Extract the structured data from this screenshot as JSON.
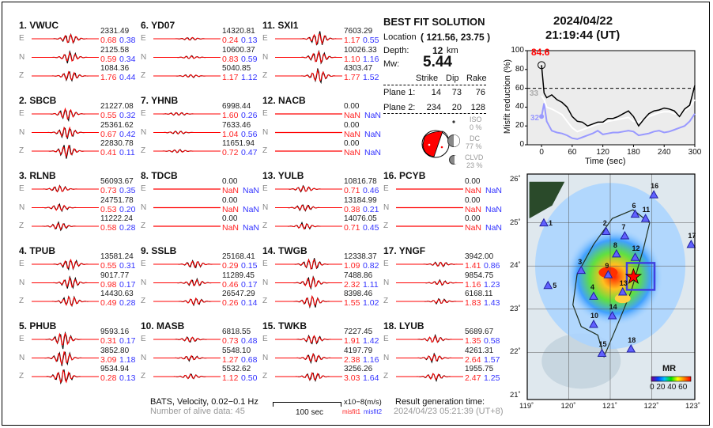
{
  "stations": [
    {
      "label": "1.  VWUC",
      "comps": [
        {
          "c": "E",
          "amp": "2331.49",
          "m1": "0.68",
          "m2": "0.38"
        },
        {
          "c": "N",
          "amp": "2125.58",
          "m1": "0.59",
          "m2": "0.34"
        },
        {
          "c": "Z",
          "amp": "1084.36",
          "m1": "1.76",
          "m2": "0.44"
        }
      ]
    },
    {
      "label": "2.  SBCB",
      "comps": [
        {
          "c": "E",
          "amp": "21227.08",
          "m1": "0.55",
          "m2": "0.32"
        },
        {
          "c": "N",
          "amp": "25361.62",
          "m1": "0.67",
          "m2": "0.42"
        },
        {
          "c": "Z",
          "amp": "22830.78",
          "m1": "0.41",
          "m2": "0.11"
        }
      ]
    },
    {
      "label": "3.  RLNB",
      "comps": [
        {
          "c": "E",
          "amp": "56093.67",
          "m1": "0.73",
          "m2": "0.35"
        },
        {
          "c": "N",
          "amp": "24751.78",
          "m1": "0.53",
          "m2": "0.20"
        },
        {
          "c": "Z",
          "amp": "11222.24",
          "m1": "0.58",
          "m2": "0.28"
        }
      ]
    },
    {
      "label": "4.  TPUB",
      "comps": [
        {
          "c": "E",
          "amp": "13581.24",
          "m1": "0.55",
          "m2": "0.31"
        },
        {
          "c": "N",
          "amp": "9017.77",
          "m1": "0.98",
          "m2": "0.17"
        },
        {
          "c": "Z",
          "amp": "14430.63",
          "m1": "0.49",
          "m2": "0.28"
        }
      ]
    },
    {
      "label": "5.  PHUB",
      "comps": [
        {
          "c": "E",
          "amp": "9593.16",
          "m1": "0.31",
          "m2": "0.17"
        },
        {
          "c": "N",
          "amp": "3852.80",
          "m1": "3.09",
          "m2": "1.18"
        },
        {
          "c": "Z",
          "amp": "9534.94",
          "m1": "0.28",
          "m2": "0.13"
        }
      ]
    },
    {
      "label": "6.  YD07",
      "comps": [
        {
          "c": "E",
          "amp": "14320.81",
          "m1": "0.24",
          "m2": "0.13"
        },
        {
          "c": "N",
          "amp": "10600.37",
          "m1": "0.83",
          "m2": "0.59"
        },
        {
          "c": "Z",
          "amp": "5040.85",
          "m1": "1.17",
          "m2": "1.12"
        }
      ]
    },
    {
      "label": "7.  YHNB",
      "comps": [
        {
          "c": "E",
          "amp": "6998.44",
          "m1": "1.60",
          "m2": "0.26"
        },
        {
          "c": "N",
          "amp": "7633.46",
          "m1": "1.04",
          "m2": "0.56"
        },
        {
          "c": "Z",
          "amp": "11651.94",
          "m1": "0.72",
          "m2": "0.47"
        }
      ]
    },
    {
      "label": "8.  TDCB",
      "comps": [
        {
          "c": "E",
          "amp": "0.00",
          "m1": "NaN",
          "m2": "NaN"
        },
        {
          "c": "N",
          "amp": "0.00",
          "m1": "NaN",
          "m2": "NaN"
        },
        {
          "c": "Z",
          "amp": "0.00",
          "m1": "NaN",
          "m2": "NaN"
        }
      ]
    },
    {
      "label": "9.  SSLB",
      "comps": [
        {
          "c": "E",
          "amp": "25168.41",
          "m1": "0.29",
          "m2": "0.15"
        },
        {
          "c": "N",
          "amp": "11289.45",
          "m1": "0.46",
          "m2": "0.17"
        },
        {
          "c": "Z",
          "amp": "26547.29",
          "m1": "0.26",
          "m2": "0.14"
        }
      ]
    },
    {
      "label": "10. MASB",
      "comps": [
        {
          "c": "E",
          "amp": "6818.55",
          "m1": "0.73",
          "m2": "0.48"
        },
        {
          "c": "N",
          "amp": "5548.10",
          "m1": "1.27",
          "m2": "0.68"
        },
        {
          "c": "Z",
          "amp": "5532.62",
          "m1": "1.12",
          "m2": "0.50"
        }
      ]
    },
    {
      "label": "11. SXI1",
      "comps": [
        {
          "c": "E",
          "amp": "7603.29",
          "m1": "1.17",
          "m2": "0.55"
        },
        {
          "c": "N",
          "amp": "10026.33",
          "m1": "1.10",
          "m2": "1.16"
        },
        {
          "c": "Z",
          "amp": "4303.47",
          "m1": "1.77",
          "m2": "1.52"
        }
      ]
    },
    {
      "label": "12. NACB",
      "comps": [
        {
          "c": "E",
          "amp": "0.00",
          "m1": "NaN",
          "m2": "NaN"
        },
        {
          "c": "N",
          "amp": "0.00",
          "m1": "NaN",
          "m2": "NaN"
        },
        {
          "c": "Z",
          "amp": "0.00",
          "m1": "NaN",
          "m2": "NaN"
        }
      ]
    },
    {
      "label": "13. YULB",
      "comps": [
        {
          "c": "E",
          "amp": "10816.78",
          "m1": "0.71",
          "m2": "0.46"
        },
        {
          "c": "N",
          "amp": "13184.99",
          "m1": "0.38",
          "m2": "0.21"
        },
        {
          "c": "Z",
          "amp": "14076.05",
          "m1": "0.71",
          "m2": "0.45"
        }
      ]
    },
    {
      "label": "14. TWGB",
      "comps": [
        {
          "c": "E",
          "amp": "12338.37",
          "m1": "1.09",
          "m2": "0.82"
        },
        {
          "c": "N",
          "amp": "7488.86",
          "m1": "2.32",
          "m2": "1.11"
        },
        {
          "c": "Z",
          "amp": "8398.46",
          "m1": "1.55",
          "m2": "1.02"
        }
      ]
    },
    {
      "label": "15. TWKB",
      "comps": [
        {
          "c": "E",
          "amp": "7227.45",
          "m1": "1.91",
          "m2": "1.42"
        },
        {
          "c": "N",
          "amp": "4197.79",
          "m1": "2.38",
          "m2": "1.16"
        },
        {
          "c": "Z",
          "amp": "3256.26",
          "m1": "3.03",
          "m2": "1.64"
        }
      ]
    },
    {
      "label": "16. PCYB",
      "comps": [
        {
          "c": "E",
          "amp": "0.00",
          "m1": "NaN",
          "m2": "NaN"
        },
        {
          "c": "N",
          "amp": "0.00",
          "m1": "NaN",
          "m2": "NaN"
        },
        {
          "c": "Z",
          "amp": "0.00",
          "m1": "NaN",
          "m2": "NaN"
        }
      ]
    },
    {
      "label": "17. YNGF",
      "comps": [
        {
          "c": "E",
          "amp": "3942.00",
          "m1": "1.41",
          "m2": "0.86"
        },
        {
          "c": "N",
          "amp": "9854.75",
          "m1": "1.16",
          "m2": "1.23"
        },
        {
          "c": "Z",
          "amp": "6168.11",
          "m1": "1.83",
          "m2": "1.43"
        }
      ]
    },
    {
      "label": "18. LYUB",
      "comps": [
        {
          "c": "E",
          "amp": "5689.67",
          "m1": "1.35",
          "m2": "0.58"
        },
        {
          "c": "N",
          "amp": "4261.31",
          "m1": "2.64",
          "m2": "1.57"
        },
        {
          "c": "Z",
          "amp": "1955.75",
          "m1": "2.47",
          "m2": "1.25"
        }
      ]
    }
  ],
  "solution": {
    "title": "BEST FIT SOLUTION",
    "location_label": "Location",
    "location_value": "( 121.56,  23.75 )",
    "depth_label": "Depth:",
    "depth_value": "12",
    "depth_unit": "km",
    "mw_label": "Mw:",
    "mw_value": "5.44",
    "headers": [
      "Strike",
      "Dip",
      "Rake"
    ],
    "planes": [
      {
        "label": "Plane 1:",
        "strike": "14",
        "dip": "73",
        "rake": "76"
      },
      {
        "label": "Plane 2:",
        "strike": "234",
        "dip": "20",
        "rake": "128"
      }
    ],
    "iso_label": "ISO",
    "iso_value": "0  %",
    "dc_label": "DC",
    "dc_value": "77 %",
    "clvd_label": "CLVD",
    "clvd_value": "23 %"
  },
  "header": {
    "date": "2024/04/22",
    "time": "21:19:44  (UT)"
  },
  "footer": {
    "processing": "BATS, Velocity, 0.02−0.1 Hz",
    "alive": "Number of alive data: 45",
    "scale_label": "100 sec",
    "units": "x10−8(m/s)",
    "misfit1": "misfit1",
    "misfit2": "misfit2",
    "gen_label": "Result generation time:",
    "gen_time": "2024/04/23 05:21:39 (UT+8)"
  },
  "colors": {
    "observed": "#000000",
    "synthetic": "#ff0000",
    "misfit1": "#ff2222",
    "misfit2": "#3333ff"
  },
  "chart_data": {
    "type": "line",
    "xlabel": "Time (sec)",
    "ylabel": "Misfit reduction (%)",
    "xlim": [
      -28,
      300
    ],
    "ylim": [
      0,
      100
    ],
    "xticks": [
      0,
      60,
      120,
      180,
      240,
      300
    ],
    "yticks": [
      0,
      20,
      40,
      60,
      80,
      100
    ],
    "threshold": 60,
    "peak_label": "84.6",
    "white_label": "33",
    "blue_label": "32",
    "x": [
      0,
      5,
      10,
      20,
      30,
      40,
      50,
      60,
      70,
      80,
      90,
      100,
      110,
      120,
      130,
      140,
      150,
      160,
      170,
      180,
      190,
      200,
      210,
      220,
      230,
      240,
      250,
      260,
      270,
      280,
      290,
      300
    ],
    "series": [
      {
        "name": "best",
        "color": "#000000",
        "values": [
          84.6,
          55,
          50,
          53,
          48,
          45,
          40,
          30,
          25,
          24,
          20,
          22,
          24,
          24,
          28,
          28,
          30,
          33,
          36,
          30,
          20,
          27,
          33,
          36,
          37,
          39,
          38,
          36,
          30,
          38,
          42,
          63
        ]
      },
      {
        "name": "white",
        "color": "#ffffff",
        "values": [
          52,
          48,
          40,
          38,
          35,
          32,
          25,
          18,
          14,
          16,
          18,
          20,
          22,
          23,
          25,
          26,
          27,
          28,
          29,
          25,
          24,
          27,
          30,
          32,
          34,
          35,
          35,
          33,
          32,
          36,
          40,
          48
        ]
      },
      {
        "name": "blue",
        "color": "#9999ff",
        "values": [
          30,
          44,
          25,
          15,
          13,
          12,
          10,
          7,
          6,
          8,
          10,
          12,
          15,
          11,
          12,
          13,
          13,
          14,
          15,
          14,
          10,
          11,
          12,
          14,
          15,
          13,
          14,
          16,
          18,
          20,
          25,
          33
        ]
      }
    ]
  },
  "map": {
    "lon_ticks": [
      "119˚",
      "120˚",
      "121˚",
      "122˚",
      "123˚"
    ],
    "lat_ticks": [
      "26˚",
      "25˚",
      "24˚",
      "23˚",
      "22˚",
      "21˚"
    ],
    "colorbar_title": "MR",
    "colorbar_ticks": "0 20 40 60",
    "epicenter": {
      "lon": 121.56,
      "lat": 23.75
    },
    "stations": [
      {
        "n": "1",
        "lon": 119.4,
        "lat": 25.0
      },
      {
        "n": "2",
        "lon": 120.9,
        "lat": 24.8
      },
      {
        "n": "3",
        "lon": 120.3,
        "lat": 23.9
      },
      {
        "n": "4",
        "lon": 120.6,
        "lat": 23.3
      },
      {
        "n": "5",
        "lon": 119.5,
        "lat": 23.55
      },
      {
        "n": "6",
        "lon": 121.6,
        "lat": 25.2
      },
      {
        "n": "7",
        "lon": 121.35,
        "lat": 24.7
      },
      {
        "n": "8",
        "lon": 121.15,
        "lat": 24.28
      },
      {
        "n": "9",
        "lon": 120.95,
        "lat": 23.8
      },
      {
        "n": "10",
        "lon": 120.6,
        "lat": 22.65
      },
      {
        "n": "11",
        "lon": 121.85,
        "lat": 25.1
      },
      {
        "n": "12",
        "lon": 121.6,
        "lat": 24.2
      },
      {
        "n": "13",
        "lon": 121.3,
        "lat": 23.4
      },
      {
        "n": "14",
        "lon": 121.05,
        "lat": 22.85
      },
      {
        "n": "15",
        "lon": 120.8,
        "lat": 21.98
      },
      {
        "n": "16",
        "lon": 122.05,
        "lat": 25.65
      },
      {
        "n": "17",
        "lon": 122.95,
        "lat": 24.5
      },
      {
        "n": "18",
        "lon": 121.5,
        "lat": 22.08
      }
    ]
  }
}
